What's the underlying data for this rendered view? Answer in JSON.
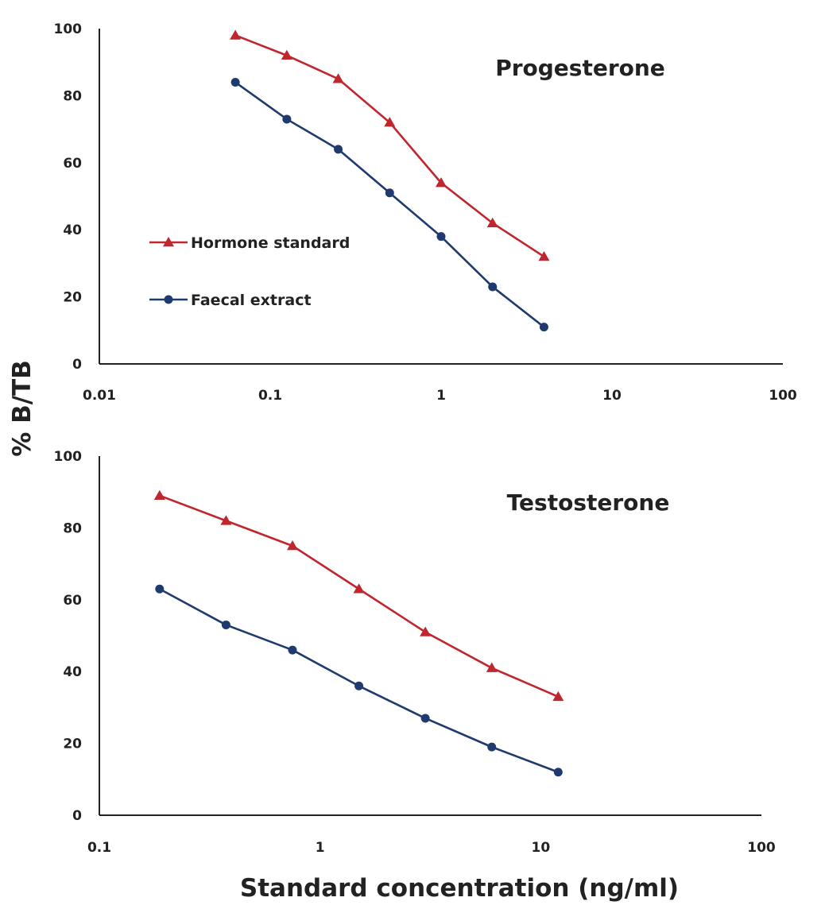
{
  "ylabel": "% B/TB",
  "xlabel": "Standard concentration (ng/ml)",
  "legend": {
    "items": [
      {
        "label": "Hormone standard",
        "color": "#c0262d",
        "marker": "triangle"
      },
      {
        "label": "Faecal extract",
        "color": "#1f3a6e",
        "marker": "circle"
      }
    ]
  },
  "chart_data": [
    {
      "type": "line",
      "title": "Progesterone",
      "xscale": "log",
      "xlim": [
        0.01,
        100
      ],
      "xticks": [
        0.01,
        0.1,
        1,
        10,
        100
      ],
      "xtick_labels": [
        "0.01",
        "0.1",
        "1",
        "10",
        "100"
      ],
      "ylim": [
        0,
        100
      ],
      "yticks": [
        0,
        20,
        40,
        60,
        80,
        100
      ],
      "ytick_labels": [
        "0",
        "20",
        "40",
        "60",
        "80",
        "100"
      ],
      "grid": false,
      "legend_position": "middle-left",
      "x": [
        0.0625,
        0.125,
        0.25,
        0.5,
        1,
        2,
        4
      ],
      "series": [
        {
          "name": "Hormone standard",
          "color": "#c0262d",
          "marker": "triangle",
          "values": [
            98,
            92,
            85,
            72,
            54,
            42,
            32
          ]
        },
        {
          "name": "Faecal extract",
          "color": "#1f3a6e",
          "marker": "circle",
          "values": [
            84,
            73,
            64,
            51,
            38,
            23,
            11
          ]
        }
      ]
    },
    {
      "type": "line",
      "title": "Testosterone",
      "xscale": "log",
      "xlim": [
        0.1,
        100
      ],
      "xticks": [
        0.1,
        1,
        10,
        100
      ],
      "xtick_labels": [
        "0.1",
        "1",
        "10",
        "100"
      ],
      "ylim": [
        0,
        100
      ],
      "yticks": [
        0,
        20,
        40,
        60,
        80,
        100
      ],
      "ytick_labels": [
        "0",
        "20",
        "40",
        "60",
        "80",
        "100"
      ],
      "grid": false,
      "x": [
        0.1875,
        0.375,
        0.75,
        1.5,
        3,
        6,
        12
      ],
      "series": [
        {
          "name": "Hormone standard",
          "color": "#c0262d",
          "marker": "triangle",
          "values": [
            89,
            82,
            75,
            63,
            51,
            41,
            33
          ]
        },
        {
          "name": "Faecal extract",
          "color": "#1f3a6e",
          "marker": "circle",
          "values": [
            63,
            53,
            46,
            36,
            27,
            19,
            12
          ]
        }
      ]
    }
  ]
}
